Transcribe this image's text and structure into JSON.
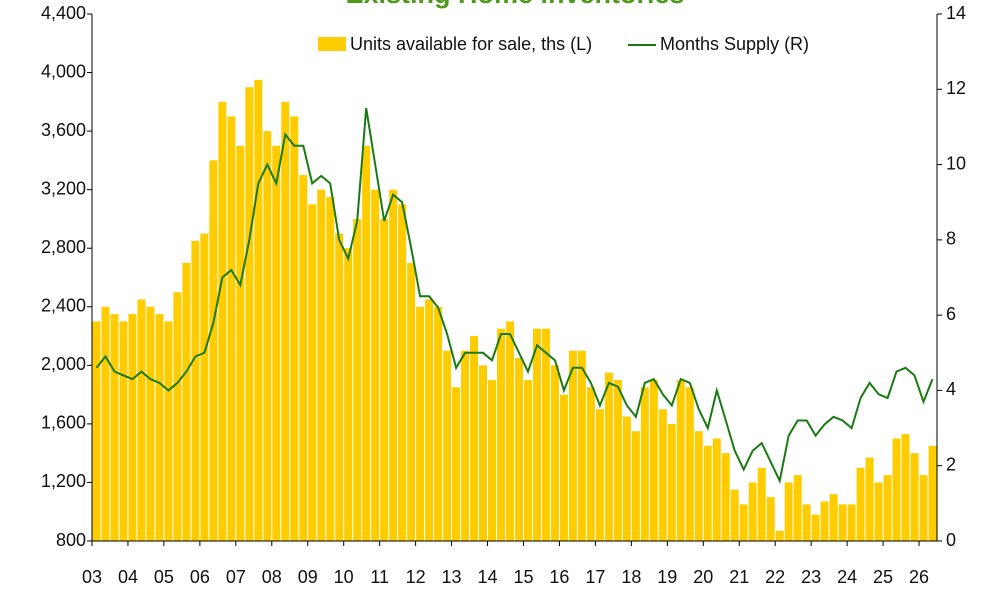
{
  "chart_data": {
    "type": "bar_line",
    "title": "Existing Home Inventories",
    "x": [
      2003.125,
      2003.375,
      2003.625,
      2003.875,
      2004.125,
      2004.375,
      2004.625,
      2004.875,
      2005.125,
      2005.375,
      2005.625,
      2005.875,
      2006.125,
      2006.375,
      2006.625,
      2006.875,
      2007.125,
      2007.375,
      2007.625,
      2007.875,
      2008.125,
      2008.375,
      2008.625,
      2008.875,
      2009.125,
      2009.375,
      2009.625,
      2009.875,
      2010.125,
      2010.375,
      2010.625,
      2010.875,
      2011.125,
      2011.375,
      2011.625,
      2011.875,
      2012.125,
      2012.375,
      2012.625,
      2012.875,
      2013.125,
      2013.375,
      2013.625,
      2013.875,
      2014.125,
      2014.375,
      2014.625,
      2014.875,
      2015.125,
      2015.375,
      2015.625,
      2015.875,
      2016.125,
      2016.375,
      2016.625,
      2016.875,
      2017.125,
      2017.375,
      2017.625,
      2017.875,
      2018.125,
      2018.375,
      2018.625,
      2018.875,
      2019.125,
      2019.375,
      2019.625,
      2019.875,
      2020.125,
      2020.375,
      2020.625,
      2020.875,
      2021.125,
      2021.375,
      2021.625,
      2021.875,
      2022.125,
      2022.375,
      2022.625,
      2022.875,
      2023.125,
      2023.375,
      2023.625,
      2023.875,
      2024.125,
      2024.375,
      2024.625,
      2024.875,
      2025.125,
      2025.375,
      2025.625,
      2025.875,
      2026.125,
      2026.375
    ],
    "series": [
      {
        "name": "Units available for sale, ths (L)",
        "color": "#ffcc00",
        "axis": "y",
        "values": [
          2300,
          2400,
          2350,
          2300,
          2350,
          2450,
          2400,
          2350,
          2300,
          2500,
          2700,
          2850,
          2900,
          3400,
          3800,
          3700,
          3500,
          3900,
          3950,
          3600,
          3500,
          3800,
          3700,
          3300,
          3100,
          3200,
          3150,
          2900,
          2800,
          3000,
          3500,
          3200,
          3000,
          3200,
          3100,
          2700,
          2400,
          2450,
          2400,
          2100,
          1850,
          2100,
          2200,
          2000,
          1900,
          2250,
          2300,
          2050,
          1900,
          2250,
          2250,
          2000,
          1800,
          2100,
          2100,
          1850,
          1700,
          1950,
          1900,
          1650,
          1550,
          1850,
          1900,
          1700,
          1600,
          1900,
          1850,
          1550,
          1450,
          1500,
          1400,
          1150,
          1050,
          1200,
          1300,
          1100,
          870,
          1200,
          1250,
          1050,
          980,
          1070,
          1120,
          1050,
          1050,
          1300,
          1370,
          1200,
          1250,
          1500,
          1530,
          1400,
          1250,
          1450
        ]
      },
      {
        "name": "Months Supply (R)",
        "color": "#1a7a12",
        "axis": "y2",
        "values": [
          4.6,
          4.9,
          4.5,
          4.4,
          4.3,
          4.5,
          4.3,
          4.2,
          4.0,
          4.2,
          4.5,
          4.9,
          5.0,
          5.8,
          7.0,
          7.2,
          6.8,
          8.0,
          9.5,
          10.0,
          9.5,
          10.8,
          10.5,
          10.5,
          9.5,
          9.7,
          9.5,
          8.0,
          7.5,
          8.5,
          11.5,
          10.0,
          8.5,
          9.2,
          9.0,
          7.8,
          6.5,
          6.5,
          6.2,
          5.5,
          4.6,
          5.0,
          5.0,
          5.0,
          4.8,
          5.5,
          5.5,
          5.0,
          4.5,
          5.2,
          5.0,
          4.8,
          4.0,
          4.6,
          4.6,
          4.2,
          3.6,
          4.2,
          4.1,
          3.6,
          3.3,
          4.2,
          4.3,
          3.9,
          3.6,
          4.3,
          4.2,
          3.5,
          3.0,
          4.0,
          3.2,
          2.4,
          1.9,
          2.4,
          2.6,
          2.1,
          1.6,
          2.8,
          3.2,
          3.2,
          2.8,
          3.1,
          3.3,
          3.2,
          3.0,
          3.8,
          4.2,
          3.9,
          3.8,
          4.5,
          4.6,
          4.4,
          3.7,
          4.3
        ]
      }
    ],
    "xlim": [
      2003,
      2026.5
    ],
    "xticks": [
      {
        "value": 2003,
        "label": "03"
      },
      {
        "value": 2004,
        "label": "04"
      },
      {
        "value": 2005,
        "label": "05"
      },
      {
        "value": 2006,
        "label": "06"
      },
      {
        "value": 2007,
        "label": "07"
      },
      {
        "value": 2008,
        "label": "08"
      },
      {
        "value": 2009,
        "label": "09"
      },
      {
        "value": 2010,
        "label": "10"
      },
      {
        "value": 2011,
        "label": "11"
      },
      {
        "value": 2012,
        "label": "12"
      },
      {
        "value": 2013,
        "label": "13"
      },
      {
        "value": 2014,
        "label": "14"
      },
      {
        "value": 2015,
        "label": "15"
      },
      {
        "value": 2016,
        "label": "16"
      },
      {
        "value": 2017,
        "label": "17"
      },
      {
        "value": 2018,
        "label": "18"
      },
      {
        "value": 2019,
        "label": "19"
      },
      {
        "value": 2020,
        "label": "20"
      },
      {
        "value": 2021,
        "label": "21"
      },
      {
        "value": 2022,
        "label": "22"
      },
      {
        "value": 2023,
        "label": "23"
      },
      {
        "value": 2024,
        "label": "24"
      },
      {
        "value": 2025,
        "label": "25"
      },
      {
        "value": 2026,
        "label": "26"
      }
    ],
    "ylim": [
      800,
      4400
    ],
    "yticks": [
      800,
      {
        "value": 1200,
        "label": "1,200"
      },
      {
        "value": 1600,
        "label": "1,600"
      },
      {
        "value": 2000,
        "label": "2,000"
      },
      {
        "value": 2400,
        "label": "2,400"
      },
      {
        "value": 2800,
        "label": "2,800"
      },
      {
        "value": 3200,
        "label": "3,200"
      },
      {
        "value": 3600,
        "label": "3,600"
      },
      {
        "value": 4000,
        "label": "4,000"
      },
      {
        "value": 4400,
        "label": "4,400"
      }
    ],
    "y2lim": [
      0,
      14
    ],
    "y2ticks": [
      0,
      2,
      4,
      6,
      8,
      10,
      12,
      14
    ],
    "grid": false
  }
}
